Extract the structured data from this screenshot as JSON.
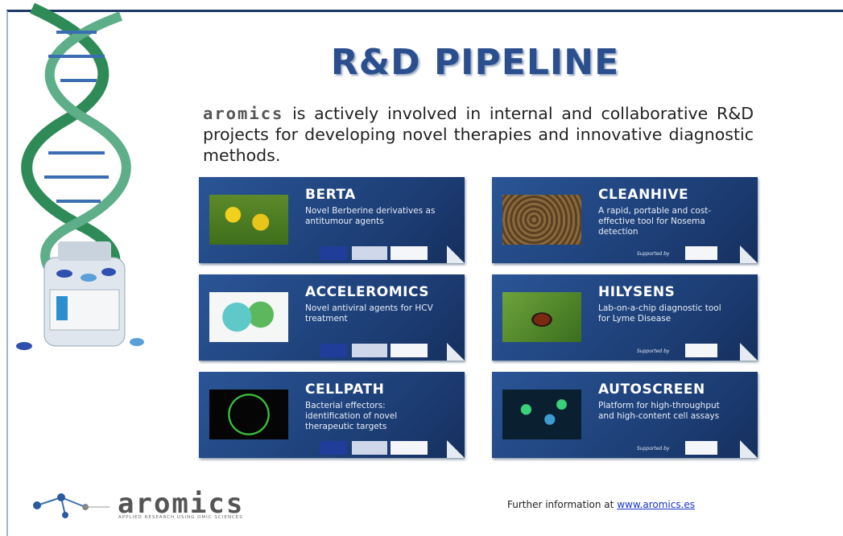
{
  "header": {
    "title": "R&D PIPELINE"
  },
  "intro": {
    "brand": "aromics",
    "text": "is actively involved in internal and collaborative R&D projects for developing novel therapies and innovative diagnostic methods."
  },
  "projects": [
    {
      "name": "BERTA",
      "description": "Novel Berberine derivatives as antitumour agents"
    },
    {
      "name": "CLEANHIVE",
      "description": "A rapid, portable and cost-effective tool for Nosema detection",
      "support": "Supported by"
    },
    {
      "name": "ACCELEROMICS",
      "description": "Novel antiviral agents for HCV treatment"
    },
    {
      "name": "HILYSENS",
      "description": "Lab-on-a-chip diagnostic tool for Lyme Disease",
      "support": "Supported by"
    },
    {
      "name": "CELLPATH",
      "description": "Bacterial effectors: identification of novel therapeutic targets"
    },
    {
      "name": "AUTOSCREEN",
      "description": "Platform for high-throughput and high-content cell assays",
      "support": "Supported by"
    }
  ],
  "footer": {
    "brand": "aromics",
    "tagline": "APPLIED RESEARCH USING OMIC SCIENCES",
    "info": "Further information at",
    "link": "www.aromics.es"
  }
}
